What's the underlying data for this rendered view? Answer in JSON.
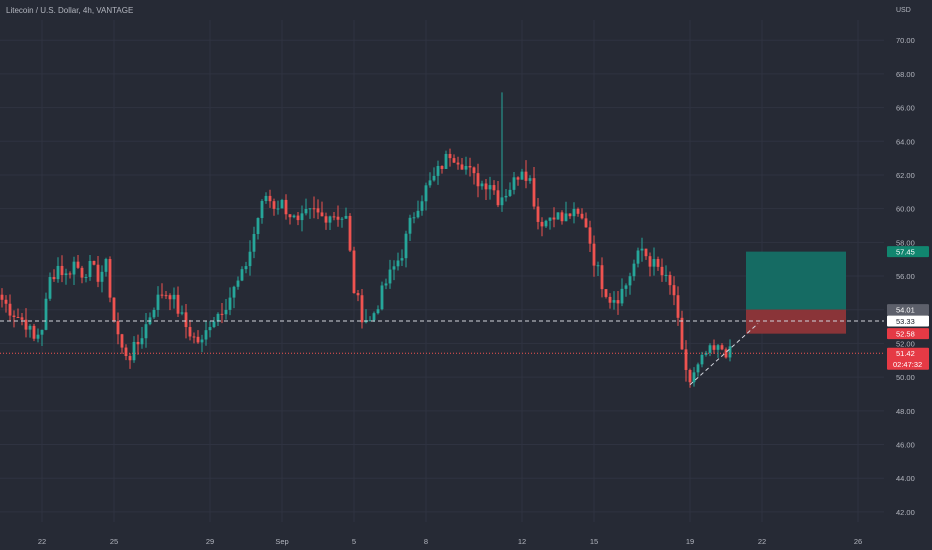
{
  "header": {
    "title": "Litecoin / U.S. Dollar, 4h, VANTAGE"
  },
  "axis": {
    "currency": "USD"
  },
  "colors": {
    "background": "#262a35",
    "up": "#26a69a",
    "down": "#ef5350",
    "text": "#b2b5be",
    "grid": "#2f3341",
    "profit_zone": "#156b63",
    "loss_zone": "#8a3438",
    "badge_gray": "#5d606b",
    "badge_white": "#ffffff",
    "badge_green": "#11866f",
    "badge_red": "#e53a45"
  },
  "chart_data": {
    "type": "candlestick",
    "interval": "4h",
    "ylim": [
      41.4,
      71.2
    ],
    "y_ticks": [
      "42.00",
      "44.00",
      "46.00",
      "48.00",
      "50.00",
      "52.00",
      "54.00",
      "56.00",
      "58.00",
      "60.00",
      "62.00",
      "64.00",
      "66.00",
      "68.00",
      "70.00"
    ],
    "x_ticks": [
      {
        "label": "22",
        "at": 10
      },
      {
        "label": "25",
        "at": 28
      },
      {
        "label": "29",
        "at": 52
      },
      {
        "label": "Sep",
        "at": 70
      },
      {
        "label": "5",
        "at": 88
      },
      {
        "label": "8",
        "at": 106
      },
      {
        "label": "12",
        "at": 130
      },
      {
        "label": "15",
        "at": 148
      },
      {
        "label": "19",
        "at": 172
      },
      {
        "label": "22",
        "at": 190
      },
      {
        "label": "26",
        "at": 214
      }
    ],
    "candle_count": 183,
    "anchors": [
      [
        0,
        54.6
      ],
      [
        2,
        54.0
      ],
      [
        6,
        53.2
      ],
      [
        8,
        52.2
      ],
      [
        10,
        53.0
      ],
      [
        12,
        55.8
      ],
      [
        14,
        56.6
      ],
      [
        16,
        56.0
      ],
      [
        18,
        56.8
      ],
      [
        20,
        56.2
      ],
      [
        22,
        56.5
      ],
      [
        24,
        56.0
      ],
      [
        26,
        56.6
      ],
      [
        28,
        53.4
      ],
      [
        30,
        51.6
      ],
      [
        32,
        51.3
      ],
      [
        34,
        52.0
      ],
      [
        36,
        53.1
      ],
      [
        38,
        54.3
      ],
      [
        40,
        55.0
      ],
      [
        42,
        55.0
      ],
      [
        44,
        54.0
      ],
      [
        46,
        53.0
      ],
      [
        48,
        52.3
      ],
      [
        50,
        52.0
      ],
      [
        52,
        53.3
      ],
      [
        54,
        53.8
      ],
      [
        56,
        54.4
      ],
      [
        60,
        56.0
      ],
      [
        62,
        57.5
      ],
      [
        64,
        59.5
      ],
      [
        66,
        60.8
      ],
      [
        68,
        60.2
      ],
      [
        70,
        60.3
      ],
      [
        72,
        59.7
      ],
      [
        74,
        59.0
      ],
      [
        76,
        59.6
      ],
      [
        78,
        59.8
      ],
      [
        80,
        59.5
      ],
      [
        82,
        59.7
      ],
      [
        84,
        59.6
      ],
      [
        86,
        59.4
      ],
      [
        88,
        55.2
      ],
      [
        90,
        53.7
      ],
      [
        92,
        53.3
      ],
      [
        94,
        54.4
      ],
      [
        96,
        55.6
      ],
      [
        98,
        56.5
      ],
      [
        100,
        57.4
      ],
      [
        102,
        59.1
      ],
      [
        104,
        60.3
      ],
      [
        106,
        61.2
      ],
      [
        108,
        61.8
      ],
      [
        110,
        62.6
      ],
      [
        112,
        63.3
      ],
      [
        114,
        63.0
      ],
      [
        116,
        62.5
      ],
      [
        118,
        61.8
      ],
      [
        120,
        61.5
      ],
      [
        122,
        61.6
      ],
      [
        124,
        60.6
      ],
      [
        126,
        61.0
      ],
      [
        128,
        61.6
      ],
      [
        130,
        62.5
      ],
      [
        132,
        61.7
      ],
      [
        134,
        59.3
      ],
      [
        136,
        59.3
      ],
      [
        138,
        59.8
      ],
      [
        140,
        59.3
      ],
      [
        142,
        59.7
      ],
      [
        144,
        59.5
      ],
      [
        146,
        59.1
      ],
      [
        148,
        57.0
      ],
      [
        150,
        55.6
      ],
      [
        152,
        54.7
      ],
      [
        154,
        54.8
      ],
      [
        156,
        55.5
      ],
      [
        158,
        56.7
      ],
      [
        160,
        57.6
      ],
      [
        162,
        56.9
      ],
      [
        164,
        56.4
      ],
      [
        166,
        55.7
      ],
      [
        168,
        54.9
      ],
      [
        170,
        51.3
      ],
      [
        172,
        49.7
      ],
      [
        174,
        50.5
      ],
      [
        176,
        51.4
      ],
      [
        178,
        51.5
      ],
      [
        180,
        51.7
      ],
      [
        182,
        51.4
      ]
    ],
    "spikes": [
      {
        "index": 125,
        "high": 66.9
      }
    ],
    "reference_lines": [
      {
        "name": "dashed-level",
        "value": 53.33,
        "style": "dashed"
      },
      {
        "name": "current-price-line",
        "value": 51.42,
        "style": "dotted"
      }
    ],
    "trendline": {
      "from": [
        172,
        49.55
      ],
      "to": [
        189,
        53.18
      ],
      "style": "dashed"
    },
    "position": {
      "type": "long",
      "start_index": 186,
      "end_index": 211,
      "target": 57.45,
      "entry": 54.01,
      "stop": 52.58
    },
    "price_badges": [
      {
        "name": "badge-target",
        "value": 57.45,
        "label": "57.45",
        "bg": "#11866f",
        "fg": "#ffffff"
      },
      {
        "name": "badge-entry",
        "value": 54.01,
        "label": "54.01",
        "bg": "#5d606b",
        "fg": "#ffffff"
      },
      {
        "name": "badge-level",
        "value": 53.33,
        "label": "53.33",
        "bg": "#ffffff",
        "fg": "#131722"
      },
      {
        "name": "badge-stop",
        "value": 52.58,
        "label": "52.58",
        "bg": "#e53a45",
        "fg": "#ffffff"
      },
      {
        "name": "badge-price",
        "value": 51.42,
        "label": "51.42",
        "sublabel": "02:47:32",
        "bg": "#e53a45",
        "fg": "#ffffff"
      }
    ]
  }
}
